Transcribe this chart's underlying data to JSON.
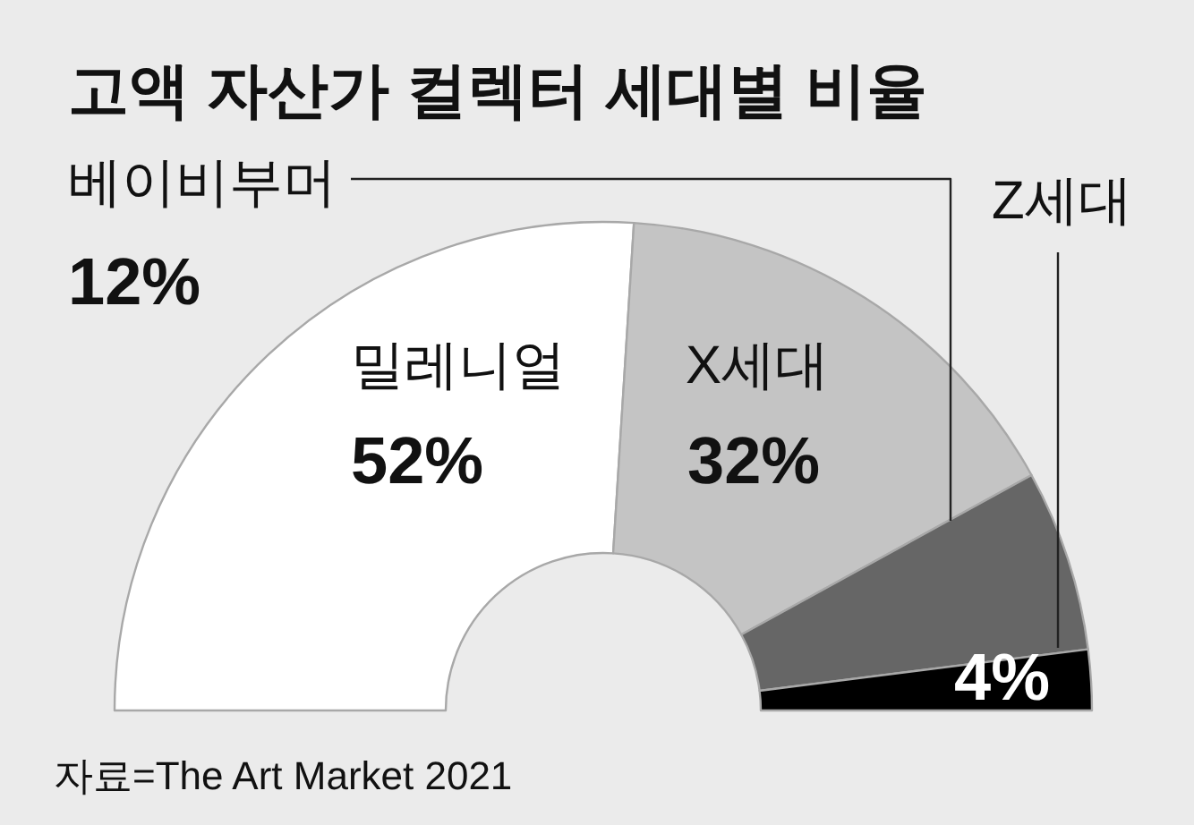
{
  "chart_data": {
    "type": "donut",
    "title": "고액 자산가 컬렉터 세대별 비율",
    "categories": [
      "밀레니얼",
      "X세대",
      "베이비부머",
      "Z세대"
    ],
    "values": [
      52,
      32,
      12,
      4
    ],
    "colors": [
      "#ffffff",
      "#c4c4c4",
      "#666666",
      "#000000"
    ],
    "value_labels": [
      "52%",
      "32%",
      "12%",
      "4%"
    ],
    "annotations": [
      "자료=The Art Market 2021"
    ]
  }
}
